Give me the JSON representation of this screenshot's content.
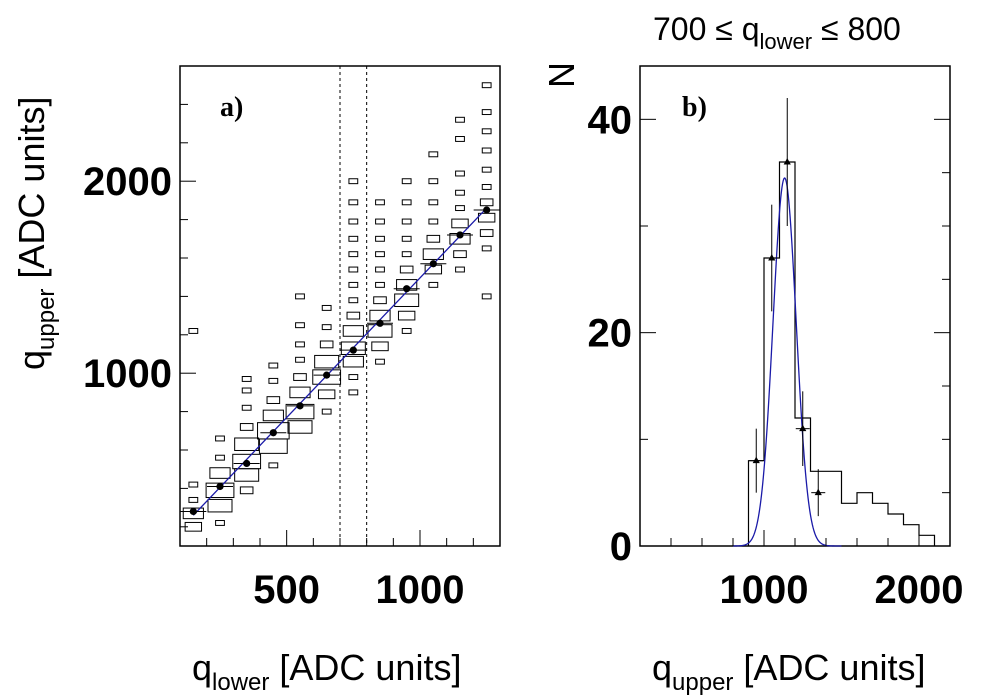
{
  "chart_data": [
    {
      "type": "heatmap",
      "panel_label": "a)",
      "xlabel_main": "q",
      "xlabel_sub": "lower",
      "xlabel_unit": " [ADC units]",
      "ylabel_main": "q",
      "ylabel_sub": "upper",
      "ylabel_unit": " [ADC units]",
      "xlim": [
        100,
        1300
      ],
      "ylim": [
        100,
        2600
      ],
      "xticks": [
        500,
        1000
      ],
      "yticks": [
        1000,
        2000
      ],
      "cut_lines_x": [
        700,
        800
      ],
      "boxes": [
        [
          150,
          200,
          3
        ],
        [
          150,
          270,
          4
        ],
        [
          150,
          340,
          1
        ],
        [
          150,
          420,
          1
        ],
        [
          150,
          1220,
          1
        ],
        [
          250,
          220,
          1
        ],
        [
          250,
          310,
          5
        ],
        [
          250,
          390,
          6
        ],
        [
          250,
          480,
          4
        ],
        [
          250,
          560,
          1
        ],
        [
          250,
          660,
          1
        ],
        [
          350,
          390,
          2
        ],
        [
          350,
          470,
          5
        ],
        [
          350,
          540,
          6
        ],
        [
          350,
          630,
          5
        ],
        [
          350,
          720,
          2
        ],
        [
          350,
          820,
          1
        ],
        [
          350,
          910,
          1
        ],
        [
          350,
          970,
          1
        ],
        [
          450,
          520,
          1
        ],
        [
          450,
          620,
          6
        ],
        [
          450,
          700,
          7
        ],
        [
          450,
          780,
          4
        ],
        [
          450,
          860,
          2
        ],
        [
          450,
          960,
          1
        ],
        [
          450,
          1040,
          1
        ],
        [
          550,
          720,
          5
        ],
        [
          550,
          800,
          6
        ],
        [
          550,
          900,
          4
        ],
        [
          550,
          980,
          2
        ],
        [
          550,
          1070,
          1
        ],
        [
          550,
          1150,
          1
        ],
        [
          550,
          1250,
          1
        ],
        [
          550,
          1400,
          1
        ],
        [
          650,
          800,
          1
        ],
        [
          650,
          890,
          3
        ],
        [
          650,
          980,
          6
        ],
        [
          650,
          1060,
          5
        ],
        [
          650,
          1150,
          2
        ],
        [
          650,
          1240,
          1
        ],
        [
          650,
          1340,
          1
        ],
        [
          750,
          900,
          1
        ],
        [
          750,
          980,
          1
        ],
        [
          750,
          1060,
          4
        ],
        [
          750,
          1130,
          5
        ],
        [
          750,
          1220,
          4
        ],
        [
          750,
          1300,
          2
        ],
        [
          750,
          1380,
          1
        ],
        [
          750,
          1460,
          1
        ],
        [
          750,
          1540,
          1
        ],
        [
          750,
          1620,
          1
        ],
        [
          750,
          1700,
          1
        ],
        [
          750,
          1790,
          1
        ],
        [
          750,
          1890,
          1
        ],
        [
          750,
          2000,
          1
        ],
        [
          850,
          1060,
          1
        ],
        [
          850,
          1140,
          3
        ],
        [
          850,
          1220,
          5
        ],
        [
          850,
          1300,
          4
        ],
        [
          850,
          1380,
          2
        ],
        [
          850,
          1460,
          1
        ],
        [
          850,
          1540,
          1
        ],
        [
          850,
          1620,
          1
        ],
        [
          850,
          1700,
          1
        ],
        [
          850,
          1790,
          1
        ],
        [
          850,
          1890,
          1
        ],
        [
          950,
          1220,
          1
        ],
        [
          950,
          1300,
          3
        ],
        [
          950,
          1380,
          5
        ],
        [
          950,
          1460,
          4
        ],
        [
          950,
          1540,
          2
        ],
        [
          950,
          1620,
          1
        ],
        [
          950,
          1700,
          1
        ],
        [
          950,
          1790,
          1
        ],
        [
          950,
          1890,
          1
        ],
        [
          950,
          2000,
          1
        ],
        [
          1050,
          1460,
          1
        ],
        [
          1050,
          1540,
          3
        ],
        [
          1050,
          1620,
          4
        ],
        [
          1050,
          1700,
          2
        ],
        [
          1050,
          1790,
          1
        ],
        [
          1050,
          1890,
          1
        ],
        [
          1050,
          2000,
          1
        ],
        [
          1050,
          2140,
          1
        ],
        [
          1150,
          1540,
          1
        ],
        [
          1150,
          1620,
          2
        ],
        [
          1150,
          1700,
          4
        ],
        [
          1150,
          1780,
          3
        ],
        [
          1150,
          1860,
          1
        ],
        [
          1150,
          1940,
          1
        ],
        [
          1150,
          2040,
          1
        ],
        [
          1150,
          2220,
          1
        ],
        [
          1150,
          2320,
          1
        ],
        [
          1250,
          1400,
          1
        ],
        [
          1250,
          1650,
          1
        ],
        [
          1250,
          1730,
          2
        ],
        [
          1250,
          1810,
          3
        ],
        [
          1250,
          1890,
          2
        ],
        [
          1250,
          1970,
          1
        ],
        [
          1250,
          2060,
          1
        ],
        [
          1250,
          2160,
          1
        ],
        [
          1250,
          2260,
          1
        ],
        [
          1250,
          2360,
          1
        ],
        [
          1250,
          2500,
          1
        ]
      ],
      "profile": {
        "x": [
          150,
          250,
          350,
          450,
          550,
          650,
          750,
          850,
          950,
          1050,
          1150,
          1250
        ],
        "y": [
          280,
          410,
          530,
          690,
          830,
          990,
          1120,
          1260,
          1440,
          1570,
          1720,
          1850
        ]
      },
      "fit_line": {
        "x": [
          150,
          1250
        ],
        "y": [
          260,
          1860
        ]
      }
    },
    {
      "type": "histogram",
      "title_pre": "700 ≤ q",
      "title_sub": "lower",
      "title_post": " ≤ 800",
      "panel_label": "b)",
      "ylabel": "N",
      "xlabel_main": "q",
      "xlabel_sub": "upper",
      "xlabel_unit": " [ADC units]",
      "xlim": [
        200,
        2200
      ],
      "ylim": [
        0,
        45
      ],
      "xticks": [
        1000,
        2000
      ],
      "yticks": [
        0,
        20,
        40
      ],
      "bins_edges": [
        900,
        1000,
        1100,
        1200,
        1300,
        1400,
        1500,
        1600,
        1700,
        1800,
        1900,
        2000,
        2100
      ],
      "bins_counts": [
        8,
        27,
        36,
        12,
        7,
        7,
        4,
        5,
        4,
        3,
        2,
        1
      ],
      "points": {
        "x": [
          950,
          1050,
          1150,
          1250,
          1350
        ],
        "y": [
          8,
          27,
          36,
          11,
          5
        ],
        "err": [
          3,
          5,
          6,
          3.5,
          2.2
        ]
      },
      "gauss_fit": {
        "amplitude": 34.5,
        "mean": 1133,
        "sigma": 75
      }
    }
  ]
}
